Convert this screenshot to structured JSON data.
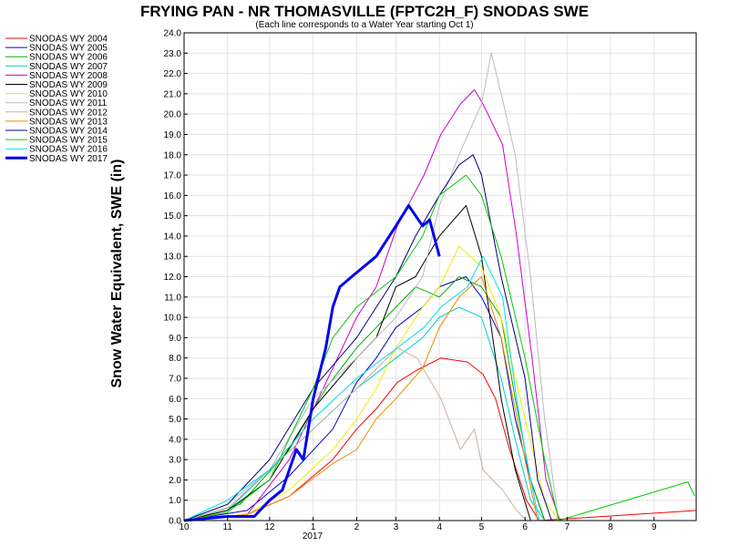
{
  "chart_data": {
    "type": "line",
    "title": "FRYING PAN - NR THOMASVILLE (FPTC2H_F) SNODAS SWE",
    "subtitle": "(Each line corresponds to a Water Year starting Oct 1)",
    "ylabel": "Snow Water Equivalent, SWE (in)",
    "xlabel": "",
    "ylim": [
      0,
      24
    ],
    "y_ticks": [
      "0.0",
      "1.0",
      "2.0",
      "3.0",
      "4.0",
      "5.0",
      "6.0",
      "7.0",
      "8.0",
      "9.0",
      "10.0",
      "11.0",
      "12.0",
      "13.0",
      "14.0",
      "15.0",
      "16.0",
      "17.0",
      "18.0",
      "19.0",
      "20.0",
      "21.0",
      "22.0",
      "23.0",
      "24.0"
    ],
    "x_ticks": [
      {
        "month": 10,
        "label": "10"
      },
      {
        "month": 11,
        "label": "11"
      },
      {
        "month": 12,
        "label": "12"
      },
      {
        "month": 1,
        "label": "1"
      },
      {
        "month": 2,
        "label": "2"
      },
      {
        "month": 3,
        "label": "3"
      },
      {
        "month": 4,
        "label": "4"
      },
      {
        "month": 5,
        "label": "5"
      },
      {
        "month": 6,
        "label": "6"
      },
      {
        "month": 7,
        "label": "7"
      },
      {
        "month": 8,
        "label": "8"
      },
      {
        "month": 9,
        "label": "9"
      }
    ],
    "x_year_label": "2017",
    "grid": true,
    "legend_position": "left",
    "series": [
      {
        "name": "SNODAS WY 2004",
        "color": "#ff0000",
        "width": 1,
        "points": [
          [
            "2003-10-01",
            0
          ],
          [
            "2003-11-15",
            0.3
          ],
          [
            "2003-12-15",
            1.2
          ],
          [
            "2004-01-15",
            3
          ],
          [
            "2004-02-01",
            4.5
          ],
          [
            "2004-02-15",
            5.5
          ],
          [
            "2004-03-01",
            6.8
          ],
          [
            "2004-03-15",
            7.4
          ],
          [
            "2004-04-01",
            8
          ],
          [
            "2004-04-20",
            7.8
          ],
          [
            "2004-05-01",
            7.2
          ],
          [
            "2004-05-10",
            6
          ],
          [
            "2004-05-20",
            3.5
          ],
          [
            "2004-06-01",
            1
          ],
          [
            "2004-06-10",
            0
          ],
          [
            "2004-09-30",
            0.5
          ]
        ]
      },
      {
        "name": "SNODAS WY 2005",
        "color": "#0000cc",
        "width": 1,
        "points": [
          [
            "2004-10-01",
            0
          ],
          [
            "2004-11-15",
            0.5
          ],
          [
            "2004-12-15",
            2.2
          ],
          [
            "2005-01-15",
            4.5
          ],
          [
            "2005-02-01",
            6.8
          ],
          [
            "2005-02-15",
            8
          ],
          [
            "2005-03-01",
            9.5
          ],
          [
            "2005-03-20",
            10.5
          ],
          [
            "2005-04-01",
            11.5
          ],
          [
            "2005-04-20",
            12
          ],
          [
            "2005-05-01",
            11
          ],
          [
            "2005-05-15",
            9
          ],
          [
            "2005-05-25",
            5
          ],
          [
            "2005-06-05",
            2
          ],
          [
            "2005-06-15",
            0
          ]
        ]
      },
      {
        "name": "SNODAS WY 2006",
        "color": "#00b000",
        "width": 1,
        "points": [
          [
            "2005-10-01",
            0
          ],
          [
            "2005-11-10",
            0.8
          ],
          [
            "2005-12-15",
            3.5
          ],
          [
            "2006-01-10",
            6.5
          ],
          [
            "2006-02-01",
            8.5
          ],
          [
            "2006-02-15",
            9.5
          ],
          [
            "2006-03-01",
            10.5
          ],
          [
            "2006-03-15",
            11.5
          ],
          [
            "2006-04-01",
            11
          ],
          [
            "2006-04-15",
            12
          ],
          [
            "2006-05-01",
            11.5
          ],
          [
            "2006-05-15",
            10
          ],
          [
            "2006-05-25",
            6
          ],
          [
            "2006-06-05",
            2
          ],
          [
            "2006-06-15",
            0
          ]
        ]
      },
      {
        "name": "SNODAS WY 2007",
        "color": "#00cccc",
        "width": 1,
        "points": [
          [
            "2006-10-01",
            0
          ],
          [
            "2006-11-01",
            0.5
          ],
          [
            "2006-12-01",
            2.5
          ],
          [
            "2007-01-01",
            4.5
          ],
          [
            "2007-02-01",
            6.5
          ],
          [
            "2007-03-01",
            8
          ],
          [
            "2007-03-20",
            9
          ],
          [
            "2007-04-01",
            10
          ],
          [
            "2007-04-15",
            10.5
          ],
          [
            "2007-05-01",
            10
          ],
          [
            "2007-05-15",
            7
          ],
          [
            "2007-05-25",
            4
          ],
          [
            "2007-06-05",
            1
          ],
          [
            "2007-06-15",
            0
          ]
        ]
      },
      {
        "name": "SNODAS WY 2008",
        "color": "#cc00cc",
        "width": 1,
        "points": [
          [
            "2007-10-01",
            0
          ],
          [
            "2007-11-15",
            0.3
          ],
          [
            "2007-12-15",
            3
          ],
          [
            "2008-01-15",
            7.5
          ],
          [
            "2008-02-01",
            10
          ],
          [
            "2008-02-15",
            11.5
          ],
          [
            "2008-03-01",
            14.5
          ],
          [
            "2008-03-20",
            17
          ],
          [
            "2008-04-01",
            19
          ],
          [
            "2008-04-15",
            20.5
          ],
          [
            "2008-04-25",
            21.2
          ],
          [
            "2008-05-01",
            20.5
          ],
          [
            "2008-05-15",
            18.5
          ],
          [
            "2008-05-25",
            14
          ],
          [
            "2008-06-05",
            8
          ],
          [
            "2008-06-15",
            2
          ],
          [
            "2008-06-25",
            0
          ]
        ]
      },
      {
        "name": "SNODAS WY 2009",
        "color": "#000000",
        "width": 1,
        "points": [
          [
            "2008-10-01",
            0
          ],
          [
            "2008-11-01",
            0.5
          ],
          [
            "2008-12-01",
            2
          ],
          [
            "2009-01-01",
            5.5
          ],
          [
            "2009-02-01",
            8
          ],
          [
            "2009-02-15",
            9
          ],
          [
            "2009-03-01",
            11.5
          ],
          [
            "2009-03-15",
            12
          ],
          [
            "2009-04-01",
            14
          ],
          [
            "2009-04-20",
            15.5
          ],
          [
            "2009-05-01",
            13
          ],
          [
            "2009-05-15",
            6
          ],
          [
            "2009-05-25",
            2.5
          ],
          [
            "2009-06-05",
            0
          ]
        ]
      },
      {
        "name": "SNODAS WY 2010",
        "color": "#eeee00",
        "width": 1,
        "points": [
          [
            "2009-10-01",
            0
          ],
          [
            "2009-11-15",
            0.3
          ],
          [
            "2009-12-15",
            1.5
          ],
          [
            "2010-01-15",
            3.5
          ],
          [
            "2010-02-01",
            5
          ],
          [
            "2010-02-15",
            6.5
          ],
          [
            "2010-03-01",
            8.5
          ],
          [
            "2010-03-20",
            10.5
          ],
          [
            "2010-04-01",
            11.5
          ],
          [
            "2010-04-15",
            13.5
          ],
          [
            "2010-05-01",
            12.5
          ],
          [
            "2010-05-15",
            10
          ],
          [
            "2010-06-01",
            5
          ],
          [
            "2010-06-15",
            1
          ],
          [
            "2010-06-25",
            0
          ]
        ]
      },
      {
        "name": "SNODAS WY 2011",
        "color": "#bbbbbb",
        "width": 1,
        "points": [
          [
            "2010-10-01",
            0
          ],
          [
            "2010-11-01",
            0.8
          ],
          [
            "2010-12-01",
            2.5
          ],
          [
            "2011-01-01",
            6
          ],
          [
            "2011-02-01",
            8
          ],
          [
            "2011-03-01",
            10
          ],
          [
            "2011-03-20",
            12
          ],
          [
            "2011-04-01",
            15.5
          ],
          [
            "2011-04-15",
            18
          ],
          [
            "2011-05-01",
            20.5
          ],
          [
            "2011-05-08",
            23
          ],
          [
            "2011-05-15",
            21
          ],
          [
            "2011-05-25",
            18
          ],
          [
            "2011-06-05",
            12
          ],
          [
            "2011-06-15",
            5
          ],
          [
            "2011-06-25",
            0
          ]
        ]
      },
      {
        "name": "SNODAS WY 2012",
        "color": "#c8b0a0",
        "width": 1,
        "points": [
          [
            "2011-10-01",
            0
          ],
          [
            "2011-11-01",
            0.6
          ],
          [
            "2011-12-01",
            2.5
          ],
          [
            "2012-01-01",
            4.5
          ],
          [
            "2012-02-01",
            6.5
          ],
          [
            "2012-03-01",
            8.5
          ],
          [
            "2012-03-15",
            8
          ],
          [
            "2012-04-01",
            6
          ],
          [
            "2012-04-15",
            3.5
          ],
          [
            "2012-04-25",
            4.5
          ],
          [
            "2012-05-01",
            2.5
          ],
          [
            "2012-05-15",
            1.5
          ],
          [
            "2012-05-25",
            0.5
          ],
          [
            "2012-06-01",
            0
          ]
        ]
      },
      {
        "name": "SNODAS WY 2013",
        "color": "#ee8800",
        "width": 1,
        "points": [
          [
            "2012-10-01",
            0
          ],
          [
            "2012-11-15",
            0.3
          ],
          [
            "2012-12-15",
            1.2
          ],
          [
            "2013-01-15",
            2.8
          ],
          [
            "2013-02-01",
            3.5
          ],
          [
            "2013-02-15",
            5
          ],
          [
            "2013-03-01",
            6
          ],
          [
            "2013-03-20",
            7.5
          ],
          [
            "2013-04-01",
            9.5
          ],
          [
            "2013-04-15",
            11
          ],
          [
            "2013-05-01",
            12
          ],
          [
            "2013-05-15",
            9
          ],
          [
            "2013-06-01",
            3
          ],
          [
            "2013-06-10",
            0
          ]
        ]
      },
      {
        "name": "SNODAS WY 2014",
        "color": "#000080",
        "width": 1,
        "points": [
          [
            "2013-10-01",
            0
          ],
          [
            "2013-11-01",
            0.8
          ],
          [
            "2013-12-01",
            3
          ],
          [
            "2014-01-01",
            6.5
          ],
          [
            "2014-02-01",
            9
          ],
          [
            "2014-03-01",
            12
          ],
          [
            "2014-03-15",
            14
          ],
          [
            "2014-04-01",
            16
          ],
          [
            "2014-04-15",
            17.5
          ],
          [
            "2014-04-25",
            18
          ],
          [
            "2014-05-01",
            17
          ],
          [
            "2014-05-15",
            12
          ],
          [
            "2014-06-01",
            7
          ],
          [
            "2014-06-10",
            2
          ],
          [
            "2014-06-20",
            0
          ]
        ]
      },
      {
        "name": "SNODAS WY 2015",
        "color": "#00cc00",
        "width": 1,
        "points": [
          [
            "2014-10-01",
            0
          ],
          [
            "2014-11-01",
            0.4
          ],
          [
            "2014-12-01",
            2
          ],
          [
            "2015-01-01",
            6.5
          ],
          [
            "2015-01-15",
            9
          ],
          [
            "2015-02-01",
            10.5
          ],
          [
            "2015-03-01",
            12
          ],
          [
            "2015-03-20",
            14
          ],
          [
            "2015-04-01",
            16
          ],
          [
            "2015-04-20",
            17
          ],
          [
            "2015-05-01",
            16
          ],
          [
            "2015-05-15",
            13
          ],
          [
            "2015-06-01",
            8
          ],
          [
            "2015-06-15",
            3
          ],
          [
            "2015-06-25",
            0
          ],
          [
            "2015-09-25",
            1.9
          ],
          [
            "2015-09-30",
            1.2
          ]
        ]
      },
      {
        "name": "SNODAS WY 2016",
        "color": "#00ddee",
        "width": 1,
        "points": [
          [
            "2015-10-01",
            0
          ],
          [
            "2015-11-01",
            1
          ],
          [
            "2015-12-01",
            2.5
          ],
          [
            "2016-01-01",
            5
          ],
          [
            "2016-02-01",
            7
          ],
          [
            "2016-03-01",
            8.5
          ],
          [
            "2016-03-20",
            9.5
          ],
          [
            "2016-04-01",
            10.5
          ],
          [
            "2016-04-20",
            11.5
          ],
          [
            "2016-05-01",
            13
          ],
          [
            "2016-05-15",
            11
          ],
          [
            "2016-05-25",
            6
          ],
          [
            "2016-06-01",
            3
          ],
          [
            "2016-06-10",
            0
          ]
        ]
      },
      {
        "name": "SNODAS WY 2017",
        "color": "#0000ee",
        "width": 3,
        "points": [
          [
            "2016-10-01",
            0
          ],
          [
            "2016-11-01",
            0.2
          ],
          [
            "2016-11-20",
            0.2
          ],
          [
            "2016-12-01",
            1
          ],
          [
            "2016-12-10",
            1.5
          ],
          [
            "2016-12-20",
            3.5
          ],
          [
            "2016-12-25",
            3
          ],
          [
            "2017-01-01",
            6
          ],
          [
            "2017-01-10",
            8.5
          ],
          [
            "2017-01-15",
            10.5
          ],
          [
            "2017-01-20",
            11.5
          ],
          [
            "2017-02-01",
            12.2
          ],
          [
            "2017-02-15",
            13
          ],
          [
            "2017-03-01",
            14.5
          ],
          [
            "2017-03-10",
            15.5
          ],
          [
            "2017-03-20",
            14.5
          ],
          [
            "2017-03-25",
            14.8
          ],
          [
            "2017-04-01",
            13
          ]
        ]
      }
    ]
  }
}
